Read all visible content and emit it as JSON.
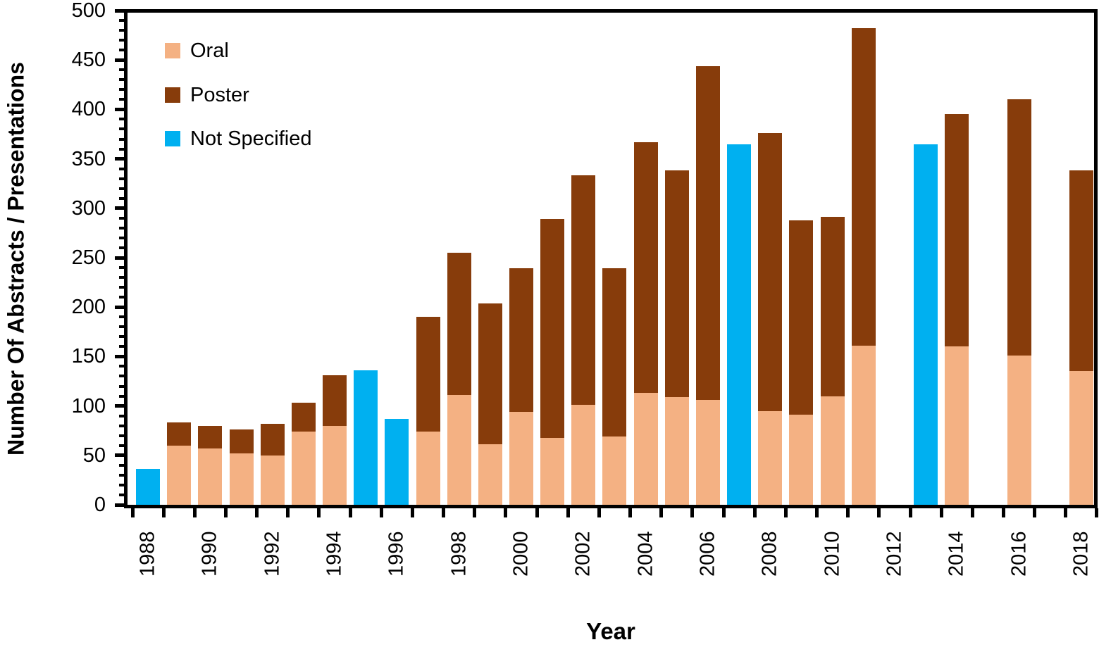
{
  "chart_data": {
    "type": "bar",
    "stacked": true,
    "xlabel": "Year",
    "ylabel": "Number Of Abstracts / Presentations",
    "ylim": [
      0,
      500
    ],
    "y_major_step": 50,
    "y_minor_step": 10,
    "grid": false,
    "legend_position": "top-left-inside",
    "y_tick_labels": [
      "0",
      "50",
      "100",
      "150",
      "200",
      "250",
      "300",
      "350",
      "400",
      "450",
      "500"
    ],
    "x_tick_labels": [
      "1988",
      "1990",
      "1992",
      "1994",
      "1996",
      "1998",
      "2000",
      "2002",
      "2004",
      "2006",
      "2008",
      "2010",
      "2012",
      "2014",
      "2016",
      "2018"
    ],
    "categories": [
      1988,
      1989,
      1990,
      1991,
      1992,
      1993,
      1994,
      1995,
      1996,
      1997,
      1998,
      1999,
      2000,
      2001,
      2002,
      2003,
      2004,
      2005,
      2006,
      2007,
      2008,
      2009,
      2010,
      2011,
      2012,
      2013,
      2014,
      2015,
      2016,
      2017,
      2018
    ],
    "series": [
      {
        "name": "Oral",
        "color": "#F4B183",
        "values": [
          0,
          60,
          57,
          52,
          50,
          74,
          80,
          0,
          0,
          74,
          111,
          61,
          94,
          68,
          101,
          69,
          113,
          109,
          106,
          0,
          95,
          91,
          110,
          161,
          0,
          0,
          160,
          0,
          151,
          0,
          135
        ]
      },
      {
        "name": "Poster",
        "color": "#873C0B",
        "values": [
          0,
          23,
          23,
          24,
          32,
          29,
          51,
          0,
          0,
          116,
          144,
          143,
          145,
          221,
          232,
          170,
          254,
          229,
          338,
          0,
          281,
          197,
          181,
          321,
          0,
          0,
          235,
          0,
          259,
          0,
          203
        ]
      },
      {
        "name": "Not Specified",
        "color": "#00B0F0",
        "values": [
          36,
          0,
          0,
          0,
          0,
          0,
          0,
          136,
          87,
          0,
          0,
          0,
          0,
          0,
          0,
          0,
          0,
          0,
          0,
          365,
          0,
          0,
          0,
          0,
          0,
          365,
          0,
          0,
          0,
          0,
          0
        ]
      }
    ]
  }
}
